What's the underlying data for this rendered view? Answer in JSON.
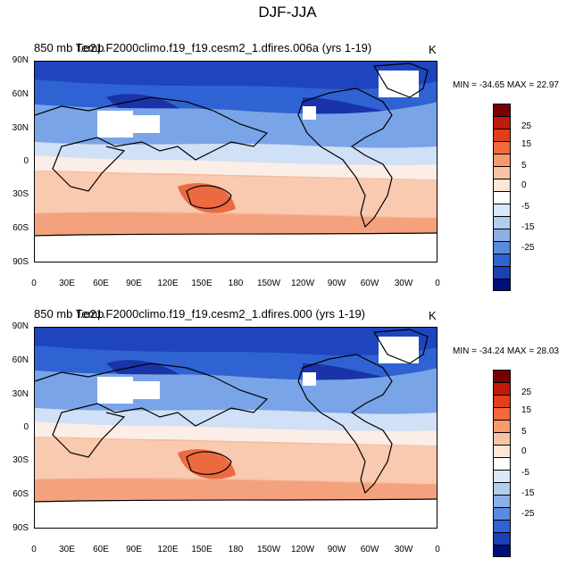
{
  "figure": {
    "title": "DJF-JJA"
  },
  "panels": [
    {
      "title_left": "850 mb Temp",
      "title_overlap": "f.e21.F2000climo.f19_f19.cesm2_1.dfires.006a (yrs 1-19)",
      "units": "K",
      "min_label": "MIN = -34.65",
      "max_label": "MAX =  22.97",
      "min": -34.65,
      "max": 22.97
    },
    {
      "title_left": "850 mb Temp",
      "title_overlap": "f.e21.F2000climo.f19_f19.cesm2_1.dfires.000 (yrs 1-19)",
      "units": "K",
      "min_label": "MIN = -34.24",
      "max_label": "MAX =  28.03",
      "min": -34.24,
      "max": 28.03
    }
  ],
  "axes": {
    "lat_ticks": [
      "90N",
      "60N",
      "30N",
      "0",
      "30S",
      "60S",
      "90S"
    ],
    "lon_ticks": [
      "0",
      "30E",
      "60E",
      "90E",
      "120E",
      "150E",
      "180",
      "150W",
      "120W",
      "90W",
      "60W",
      "30W",
      "0"
    ]
  },
  "colorbar": {
    "labels": [
      "25",
      "15",
      "5",
      "0",
      "-5",
      "-15",
      "-25"
    ],
    "colors": [
      "#7a0000",
      "#c21a0a",
      "#e43d1a",
      "#f26a3c",
      "#f69a6e",
      "#f9c3a3",
      "#fde6d6",
      "#ffffff",
      "#d9e8f8",
      "#b3cdef",
      "#8ab0e8",
      "#5a8ae0",
      "#2f63d3",
      "#1b3fb8",
      "#000e7a"
    ]
  },
  "colors": {
    "cold_deep": "#1833b0",
    "cold": "#3a6ee0",
    "cool": "#8fb7ef",
    "cool_light": "#cfe0f7",
    "neutral": "#fbeee6",
    "warm_light": "#f9c9b0",
    "warm": "#f4a27e",
    "hot": "#ec6a40",
    "land_missing": "#ffffff"
  }
}
